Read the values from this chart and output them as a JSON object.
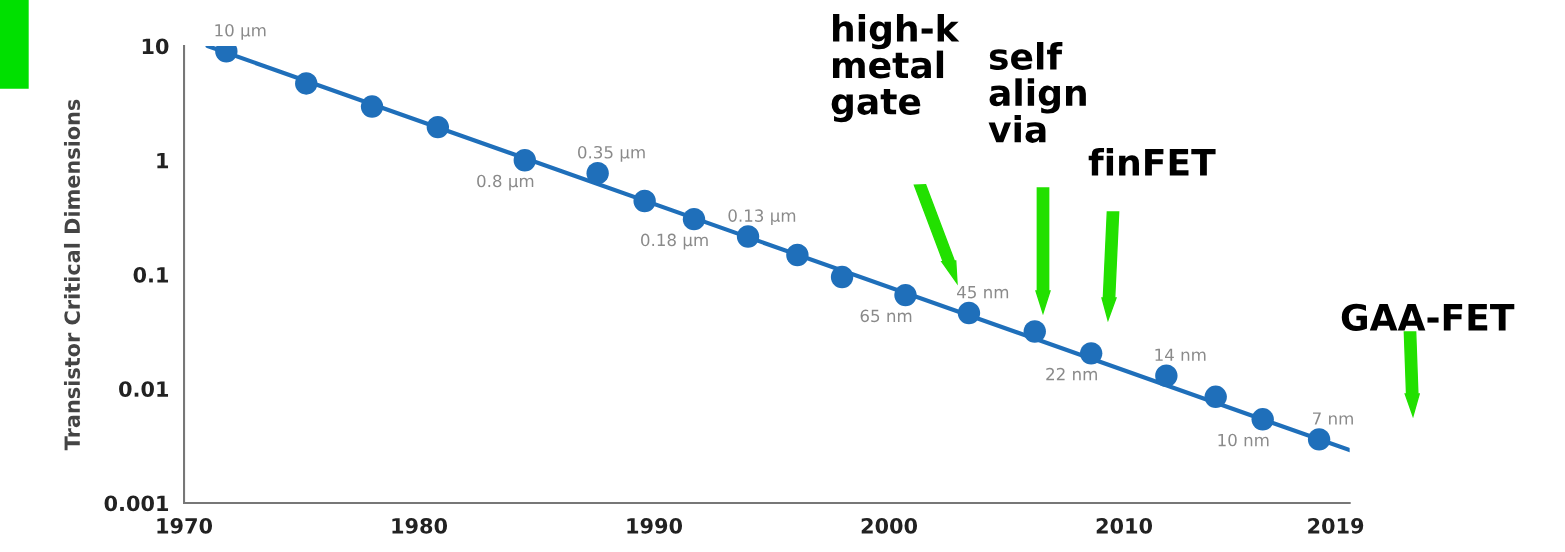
{
  "chart_data": {
    "type": "scatter",
    "ylabel": "Transistor Critical Dimensions",
    "log": "y",
    "xlim": [
      1970,
      2019.6
    ],
    "xticks": [
      1970,
      1980,
      1990,
      2000,
      2010,
      2019
    ],
    "ylim": [
      0.001,
      10
    ],
    "yticks": [
      0.001,
      0.01,
      0.1,
      1,
      10
    ],
    "grid": false,
    "series": [
      {
        "type": "line",
        "color": "#1f6fba",
        "marker": "none",
        "x": [
          1971.0,
          2019.6
        ],
        "values": [
          10,
          0.0029
        ]
      },
      {
        "color": "#1f6fba",
        "marker": "circle",
        "x": [
          1971.8,
          1975.2,
          1978.0,
          1980.8,
          1984.5,
          1987.6,
          1989.6,
          1991.7,
          1994.0,
          1996.1,
          1998.0,
          2000.7,
          2003.4,
          2006.2,
          2008.6,
          2011.8,
          2013.9,
          2015.9,
          2018.3
        ],
        "values": [
          9,
          4.7,
          2.95,
          1.95,
          1.0,
          0.77,
          0.44,
          0.305,
          0.215,
          0.148,
          0.095,
          0.066,
          0.046,
          0.0317,
          0.0204,
          0.013,
          0.0085,
          0.0054,
          0.0036
        ]
      }
    ],
    "annotations": [
      {
        "text": "10 μm",
        "x": 1971.8,
        "y": 9
      },
      {
        "text": "0.8 μm",
        "x": 1984.5,
        "y": 1.0
      },
      {
        "text": "0.35 μm",
        "x": 1987.6,
        "y": 0.77
      },
      {
        "text": "0.18 μm",
        "x": 1991.7,
        "y": 0.305
      },
      {
        "text": "0.13 μm",
        "x": 1994.0,
        "y": 0.215
      },
      {
        "text": "65 nm",
        "x": 2000.7,
        "y": 0.066
      },
      {
        "text": "45 nm",
        "x": 2003.4,
        "y": 0.046
      },
      {
        "text": "22 nm",
        "x": 2008.6,
        "y": 0.0204
      },
      {
        "text": "14 nm",
        "x": 2011.8,
        "y": 0.013
      },
      {
        "text": "10 nm",
        "x": 2015.9,
        "y": 0.0054
      },
      {
        "text": "7 nm",
        "x": 2018.3,
        "y": 0.0036
      },
      "high-k\nmetal\ngate",
      "self\nalign\nvia",
      "finFET",
      "GAA-FET"
    ]
  }
}
